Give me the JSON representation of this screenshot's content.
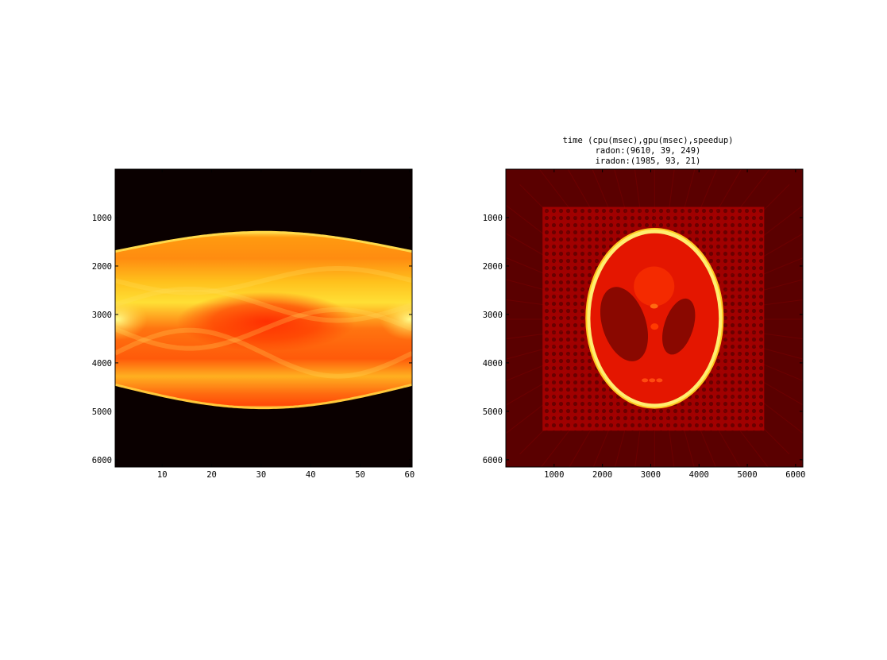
{
  "figure": {
    "title_lines": [
      "time (cpu(msec),gpu(msec),speedup)",
      "radon:(9610, 39, 249)",
      "iradon:(1985, 93, 21)"
    ]
  },
  "chart_data": [
    {
      "type": "heatmap",
      "content": "sinogram",
      "colormap": "hot",
      "title": "",
      "xlabel": "",
      "ylabel": "",
      "xlim": [
        0.5,
        60.5
      ],
      "ylim": [
        6150,
        0
      ],
      "y_reversed": true,
      "x_ticks": [
        10,
        20,
        30,
        40,
        50,
        60
      ],
      "y_ticks": [
        1000,
        2000,
        3000,
        4000,
        5000,
        6000
      ],
      "x_tick_labels": [
        "10",
        "20",
        "30",
        "40",
        "50",
        "60"
      ],
      "y_tick_labels": [
        "1000",
        "2000",
        "3000",
        "4000",
        "5000",
        "6000"
      ],
      "grid": false
    },
    {
      "type": "heatmap",
      "content": "reconstructed image",
      "colormap": "hot",
      "title_lines": [
        "time (cpu(msec),gpu(msec),speedup)",
        "radon:(9610, 39, 249)",
        "iradon:(1985, 93, 21)"
      ],
      "xlabel": "",
      "ylabel": "",
      "xlim": [
        0,
        6150
      ],
      "ylim": [
        6150,
        0
      ],
      "y_reversed": true,
      "x_ticks": [
        1000,
        2000,
        3000,
        4000,
        5000,
        6000
      ],
      "y_ticks": [
        1000,
        2000,
        3000,
        4000,
        5000,
        6000
      ],
      "x_tick_labels": [
        "1000",
        "2000",
        "3000",
        "4000",
        "5000",
        "6000"
      ],
      "y_tick_labels": [
        "1000",
        "2000",
        "3000",
        "4000",
        "5000",
        "6000"
      ],
      "grid": false
    }
  ]
}
